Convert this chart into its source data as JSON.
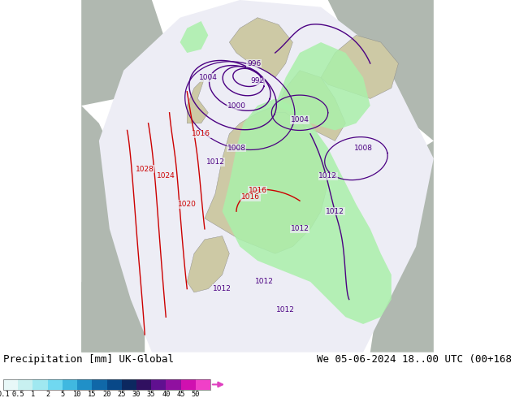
{
  "title_left": "Precipitation [mm] UK-Global",
  "title_right": "We 05-06-2024 18..00 UTC (00+168",
  "colorbar_labels": [
    "0.1",
    "0.5",
    "1",
    "2",
    "5",
    "10",
    "15",
    "20",
    "25",
    "30",
    "35",
    "40",
    "45",
    "50"
  ],
  "colorbar_colors": [
    "#e8f8f8",
    "#c8f0f0",
    "#a0e8f0",
    "#70d8f0",
    "#40b8e0",
    "#2090c8",
    "#1068a8",
    "#084888",
    "#0c2860",
    "#301060",
    "#601090",
    "#9010a0",
    "#d010b0",
    "#f040c8"
  ],
  "bg_color": "#ffffff",
  "land_color": "#cdc9a5",
  "sea_color": "#b0b8b0",
  "precip_color": "#aaf0aa",
  "isobar_purple": "#4b0082",
  "isobar_red": "#cc0000",
  "white_area_color": "#e8e8f0",
  "text_color": "#000000",
  "font_size_title": 9,
  "colorbar_arrow_color": "#e040c0",
  "fig_width": 6.34,
  "fig_height": 4.9,
  "dpi": 100
}
